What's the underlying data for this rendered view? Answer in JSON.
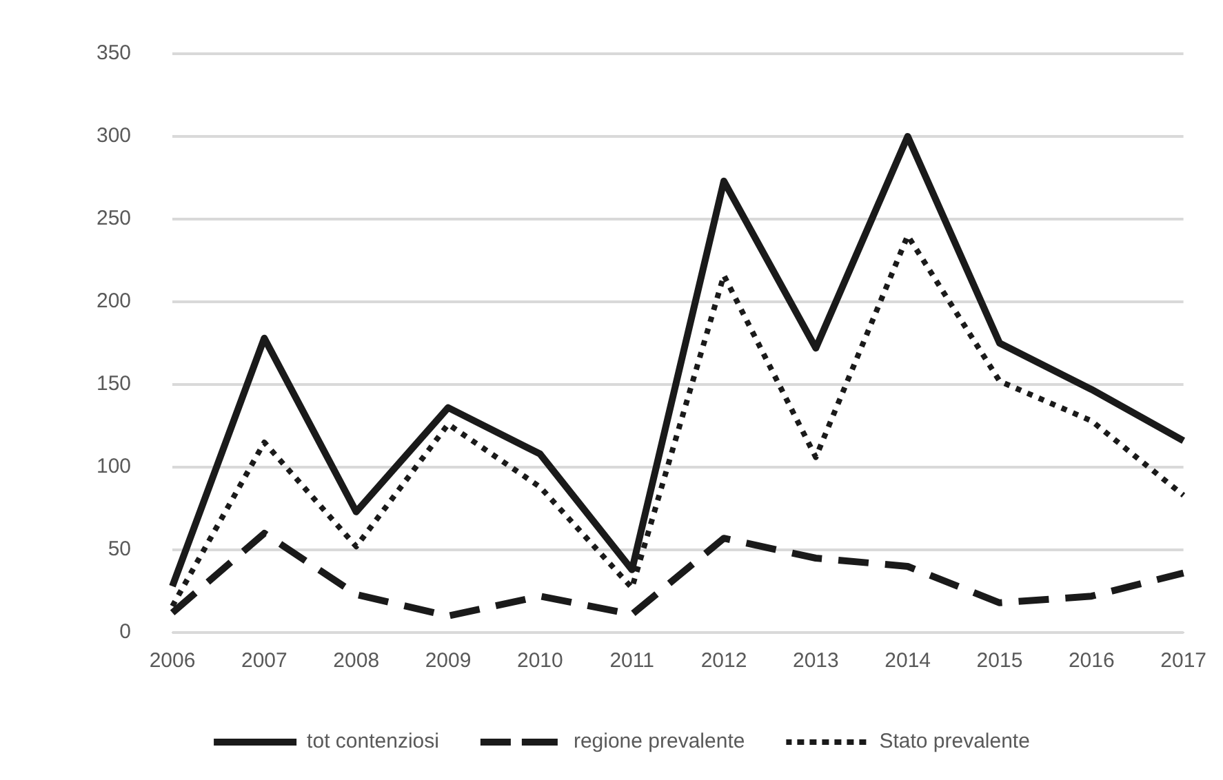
{
  "chart_data": {
    "type": "line",
    "categories": [
      "2006",
      "2007",
      "2008",
      "2009",
      "2010",
      "2011",
      "2012",
      "2013",
      "2014",
      "2015",
      "2016",
      "2017"
    ],
    "series": [
      {
        "name": "tot contenziosi",
        "color": "#1a1a1a",
        "line_style": "solid",
        "values": [
          28,
          178,
          73,
          136,
          108,
          38,
          273,
          172,
          300,
          175,
          147,
          116
        ]
      },
      {
        "name": "regione prevalente",
        "color": "#1a1a1a",
        "line_style": "dashed",
        "values": [
          12,
          60,
          23,
          10,
          22,
          11,
          57,
          45,
          40,
          18,
          22,
          36
        ]
      },
      {
        "name": "Stato prevalente",
        "color": "#1a1a1a",
        "line_style": "dotted",
        "values": [
          16,
          115,
          52,
          126,
          88,
          27,
          216,
          106,
          240,
          152,
          128,
          83
        ]
      }
    ],
    "ylim": [
      0,
      350
    ],
    "yticks": [
      0,
      50,
      100,
      150,
      200,
      250,
      300,
      350
    ],
    "grid": "y",
    "legend": "bottom",
    "marker": "none"
  }
}
